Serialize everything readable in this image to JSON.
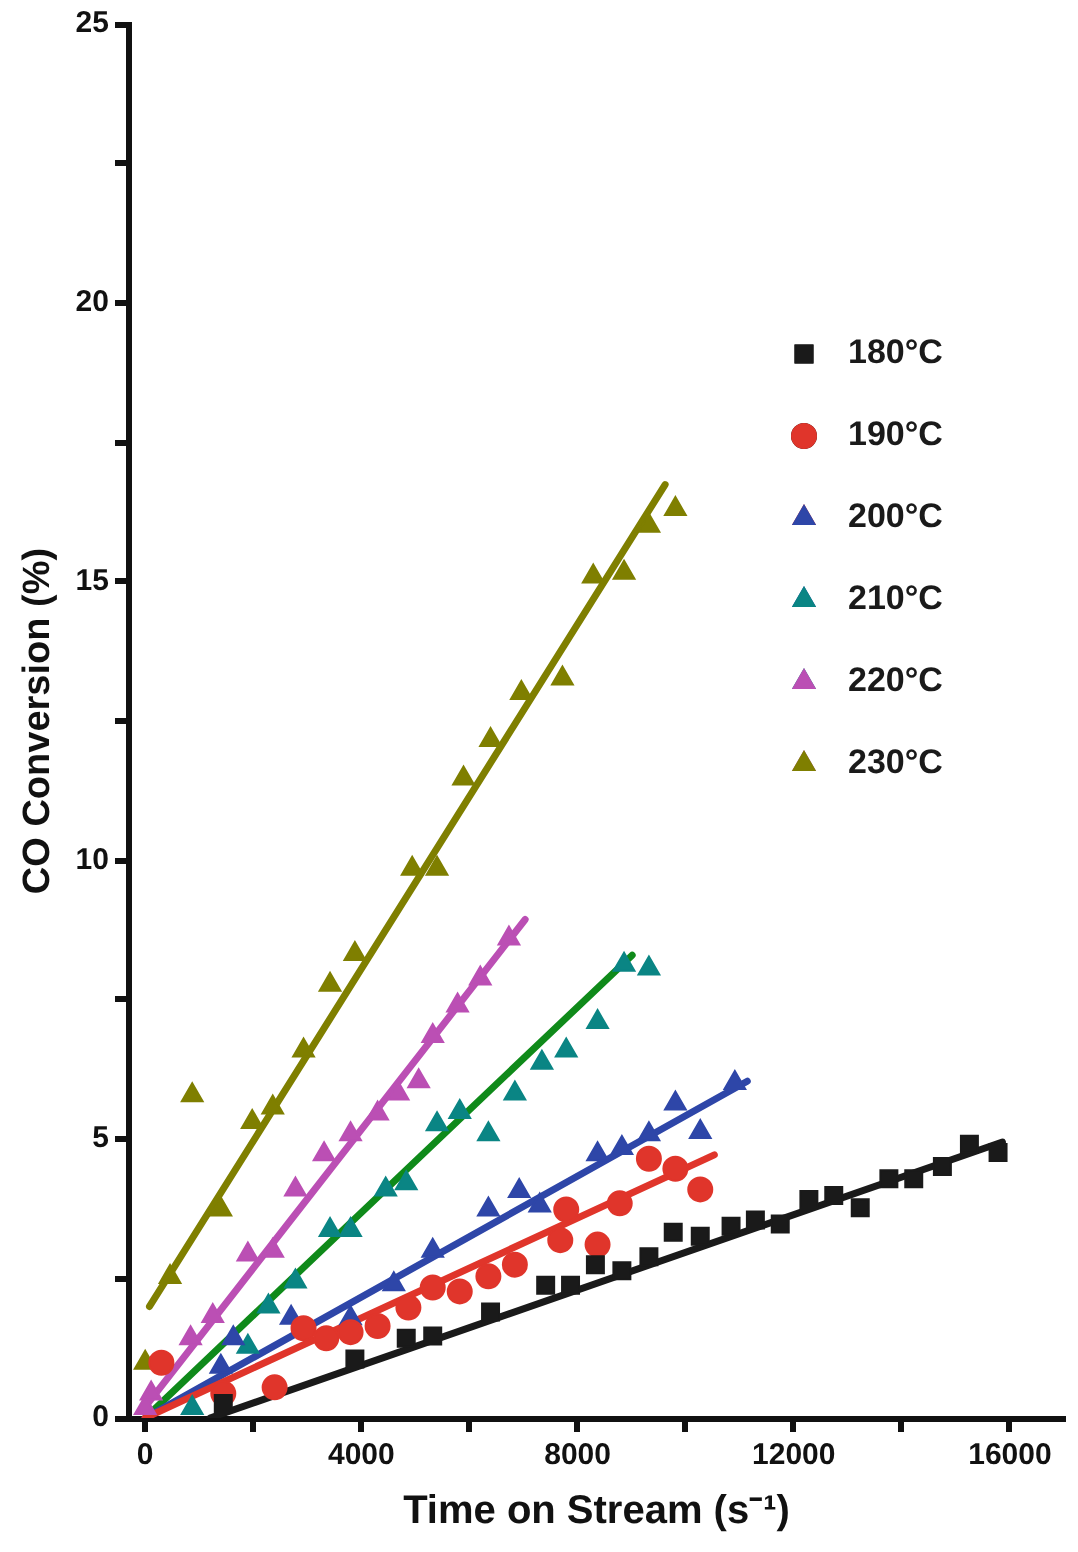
{
  "chart_data": {
    "type": "scatter",
    "xlabel": "Time on Stream (s⁻¹)",
    "ylabel": "CO Conversion (%)",
    "xlim": [
      -300,
      17000
    ],
    "xticks": [
      0,
      {
        "value": 2000,
        "label": null
      },
      4000,
      {
        "value": 6000,
        "label": null
      },
      8000,
      {
        "value": 10000,
        "label": null
      },
      12000,
      {
        "value": 14000,
        "label": null
      },
      16000
    ],
    "ylim": [
      0,
      25
    ],
    "yticks": [
      0,
      {
        "value": 2.5,
        "label": null
      },
      5,
      {
        "value": 7.5,
        "label": null
      },
      10,
      {
        "value": 12.5,
        "label": null
      },
      15,
      {
        "value": 17.5,
        "label": null
      },
      20,
      {
        "value": 22.5,
        "label": null
      },
      25
    ],
    "grid": false,
    "legend": "top right",
    "series": [
      {
        "name": "180°C",
        "color": "#1a1a1a",
        "marker": "square",
        "x": [
          1445,
          3880,
          4830,
          5320,
          6390,
          7410,
          7870,
          8330,
          8820,
          9320,
          9770,
          10270,
          10840,
          11290,
          11750,
          12280,
          12740,
          13230,
          13760,
          14220,
          14750,
          15250,
          15780
        ],
        "values": [
          0.26,
          1.06,
          1.43,
          1.47,
          1.9,
          2.38,
          2.38,
          2.75,
          2.64,
          2.89,
          3.33,
          3.26,
          3.44,
          3.55,
          3.48,
          3.92,
          3.99,
          3.77,
          4.29,
          4.29,
          4.51,
          4.91,
          4.76
        ]
      },
      {
        "name": "190°C",
        "color": "#e0352b",
        "marker": "circle",
        "x": [
          300,
          1445,
          2395,
          2930,
          3350,
          3800,
          4300,
          4870,
          5320,
          5820,
          6350,
          6840,
          7680,
          7790,
          8370,
          8780,
          9320,
          9810,
          10270
        ],
        "values": [
          0.99,
          0.44,
          0.55,
          1.61,
          1.43,
          1.54,
          1.65,
          1.98,
          2.34,
          2.27,
          2.54,
          2.75,
          3.19,
          3.74,
          3.11,
          3.85,
          4.65,
          4.47,
          4.1
        ]
      },
      {
        "name": "200°C",
        "color": "#2e46a8",
        "marker": "triangle",
        "x": [
          1400,
          1630,
          2700,
          3800,
          4600,
          5320,
          6350,
          6920,
          7300,
          7870,
          8370,
          8820,
          9320,
          9810,
          10270,
          10910
        ],
        "values": [
          0.92,
          1.43,
          1.8,
          1.79,
          2.4,
          3.0,
          3.74,
          4.07,
          3.81,
          null,
          4.73,
          4.84,
          5.09,
          5.64,
          5.13,
          6.01
        ]
      },
      {
        "name": "210°C",
        "color": "#0a8584",
        "marker": "triangle",
        "x": [
          870,
          1900,
          2280,
          2780,
          3420,
          3800,
          4450,
          4830,
          5400,
          5820,
          6350,
          6840,
          7340,
          7790,
          8370,
          8860,
          9320
        ],
        "values": [
          0.18,
          1.28,
          2.0,
          2.45,
          3.37,
          3.37,
          4.1,
          4.21,
          5.27,
          5.49,
          5.09,
          5.82,
          6.37,
          6.59,
          7.1,
          8.13,
          8.06
        ]
      },
      {
        "name": "220°C",
        "color": "#bb4fb4",
        "marker": "triangle",
        "x": [
          0,
          110,
          840,
          1250,
          1900,
          2360,
          2780,
          3310,
          3800,
          4300,
          4680,
          5060,
          5320,
          5780,
          6200,
          6730
        ],
        "values": [
          0.18,
          0.44,
          1.43,
          1.83,
          2.93,
          3.0,
          4.1,
          4.73,
          5.09,
          5.46,
          5.82,
          6.04,
          6.85,
          7.4,
          7.88,
          8.6
        ]
      },
      {
        "name": "230°C",
        "color": "#7f7f00",
        "marker": "triangle",
        "x": [
          0,
          460,
          870,
          1400,
          1980,
          2360,
          2930,
          3420,
          3880,
          4940,
          5400,
          5890,
          6390,
          6960,
          7720,
          8290,
          8860,
          9320,
          9810
        ],
        "values": [
          0.99,
          2.53,
          5.79,
          3.74,
          5.31,
          5.57,
          6.59,
          7.77,
          8.32,
          9.85,
          9.85,
          11.47,
          12.16,
          13.0,
          13.26,
          15.09,
          15.16,
          16.0,
          16.3
        ]
      },
      {
        "type": "line",
        "color": "#1a1a1a",
        "marker": "none",
        "x": [
          1200,
          15860
        ],
        "values": [
          0,
          4.95
        ]
      },
      {
        "type": "line",
        "color": "#e0352b",
        "marker": "none",
        "x": [
          0,
          10530
        ],
        "values": [
          0,
          4.72
        ]
      },
      {
        "type": "line",
        "color": "#2e46a8",
        "marker": "none",
        "x": [
          0,
          11140
        ],
        "values": [
          0,
          6.04
        ]
      },
      {
        "type": "line",
        "color": "#0f8a1a",
        "marker": "none",
        "x": [
          0,
          9010
        ],
        "values": [
          0,
          8.3
        ]
      },
      {
        "type": "line",
        "color": "#bb4fb4",
        "marker": "none",
        "x": [
          0,
          7030
        ],
        "values": [
          0.2,
          8.94
        ]
      },
      {
        "type": "line",
        "color": "#7f7f00",
        "marker": "none",
        "x": [
          80,
          9620
        ],
        "values": [
          2.0,
          16.74
        ]
      }
    ]
  }
}
